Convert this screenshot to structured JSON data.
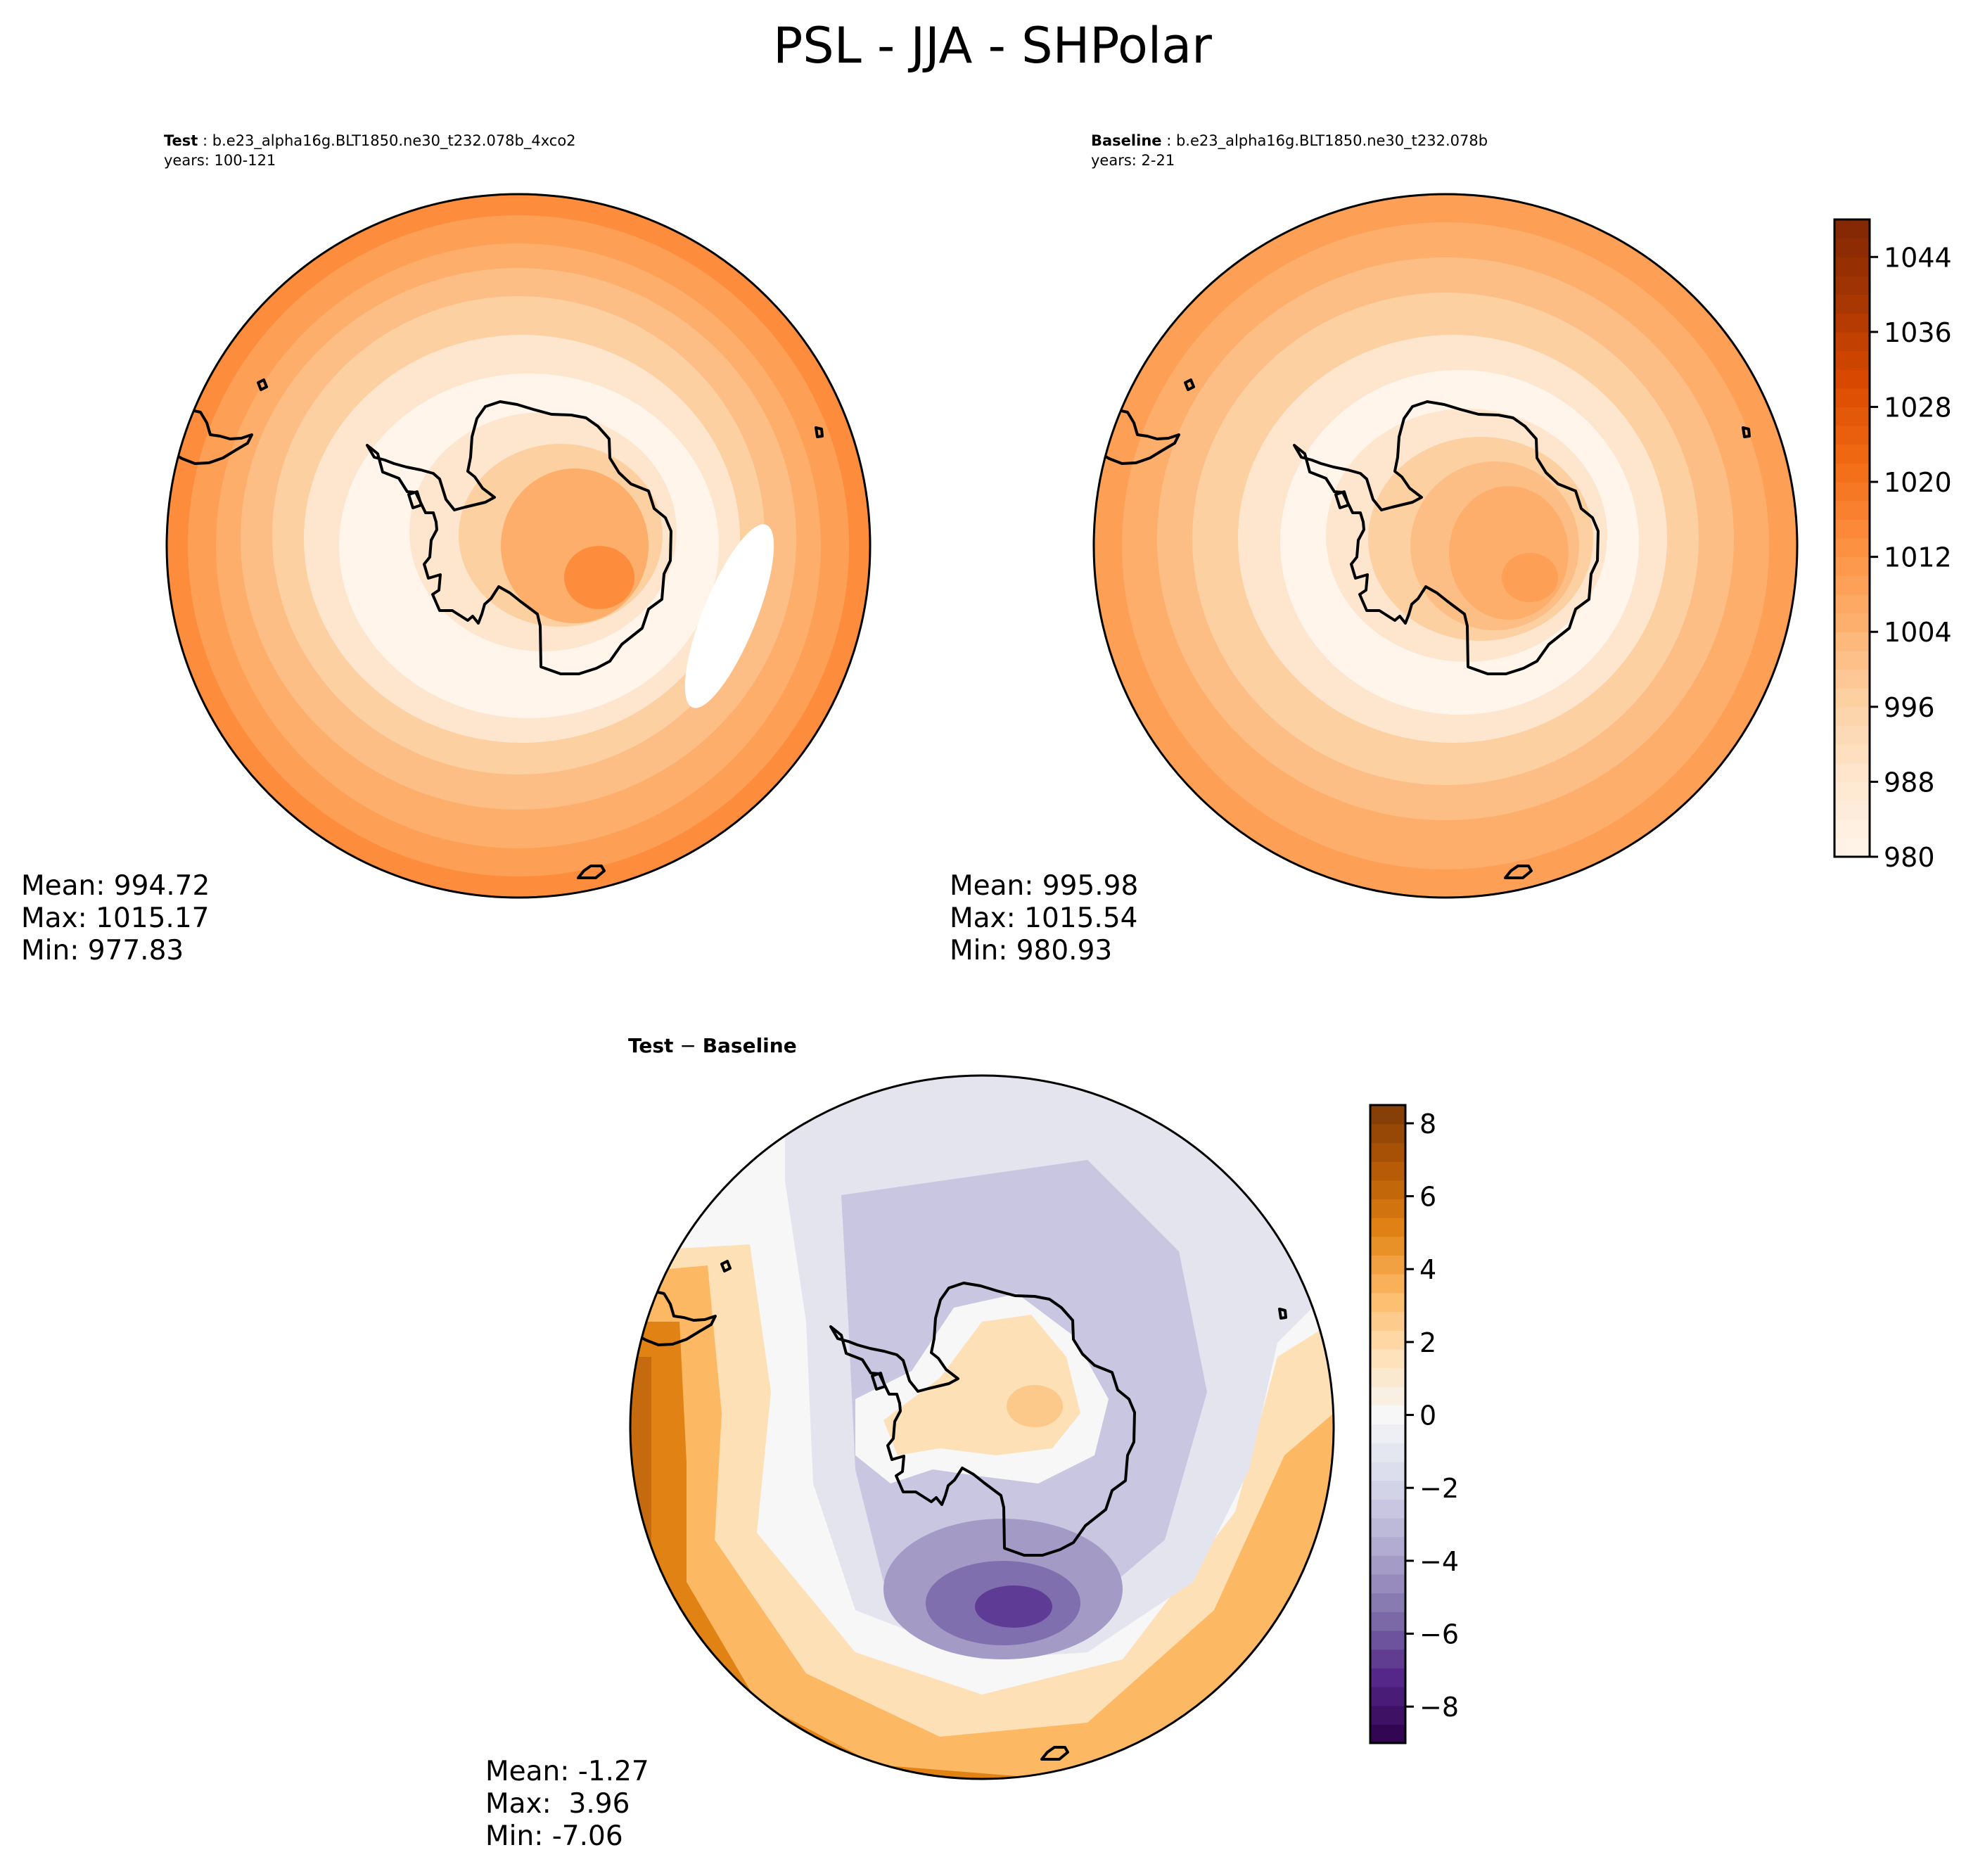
{
  "figure_title": "PSL - JJA - SHPolar",
  "colors": {
    "oranges": [
      "#fff5eb",
      "#fee6ce",
      "#fdd0a2",
      "#fdae6b",
      "#fd8d3c",
      "#f16913",
      "#d94801",
      "#a63603",
      "#7f2704"
    ],
    "diff_low": [
      "#2d004b",
      "#542788",
      "#8073ac",
      "#b2abd2",
      "#d8daeb",
      "#f7f7f7"
    ],
    "diff_high": [
      "#f7f7f7",
      "#fee0b6",
      "#fdb863",
      "#e08214",
      "#b35806",
      "#7f3b08"
    ],
    "coastline": "#000000"
  },
  "icons": {
    "test_map": "polar-map-icon",
    "baseline_map": "polar-map-icon",
    "difference_map": "polar-map-icon"
  },
  "chart_data": [
    {
      "type": "heatmap",
      "panel": "test",
      "case_label": "Test",
      "case_name": "b.e23_alpha16g.BLT1850.ne30_t232.078b_4xco2",
      "years": "years: 100-121",
      "projection": "south-polar-stereographic",
      "stats": {
        "mean": "Mean: 994.72",
        "max": "Max: 1015.17",
        "min": "Min: 977.83"
      }
    },
    {
      "type": "heatmap",
      "panel": "baseline",
      "case_label": "Baseline",
      "case_name": "b.e23_alpha16g.BLT1850.ne30_t232.078b",
      "years": "years: 2-21",
      "projection": "south-polar-stereographic",
      "stats": {
        "mean": "Mean: 995.98",
        "max": "Max: 1015.54",
        "min": "Min: 980.93"
      },
      "colorbar": {
        "range": [
          980,
          1048
        ],
        "ticks": [
          980,
          988,
          996,
          1004,
          1012,
          1020,
          1028,
          1036,
          1044
        ],
        "tick_labels": [
          "980",
          "988",
          "996",
          "1004",
          "1012",
          "1020",
          "1028",
          "1036",
          "1044"
        ]
      }
    },
    {
      "type": "heatmap",
      "panel": "difference",
      "title_a": "Test",
      "title_op": " − ",
      "title_b": "Baseline",
      "projection": "south-polar-stereographic",
      "stats": {
        "mean": "Mean: -1.27",
        "max": "Max:  3.96",
        "min": "Min: -7.06"
      },
      "colorbar": {
        "range": [
          -9,
          8.5
        ],
        "ticks": [
          -8,
          -6,
          -4,
          -2,
          0,
          2,
          4,
          6,
          8
        ],
        "tick_labels": [
          "−8",
          "−6",
          "−4",
          "−2",
          "0",
          "2",
          "4",
          "6",
          "8"
        ]
      }
    }
  ]
}
